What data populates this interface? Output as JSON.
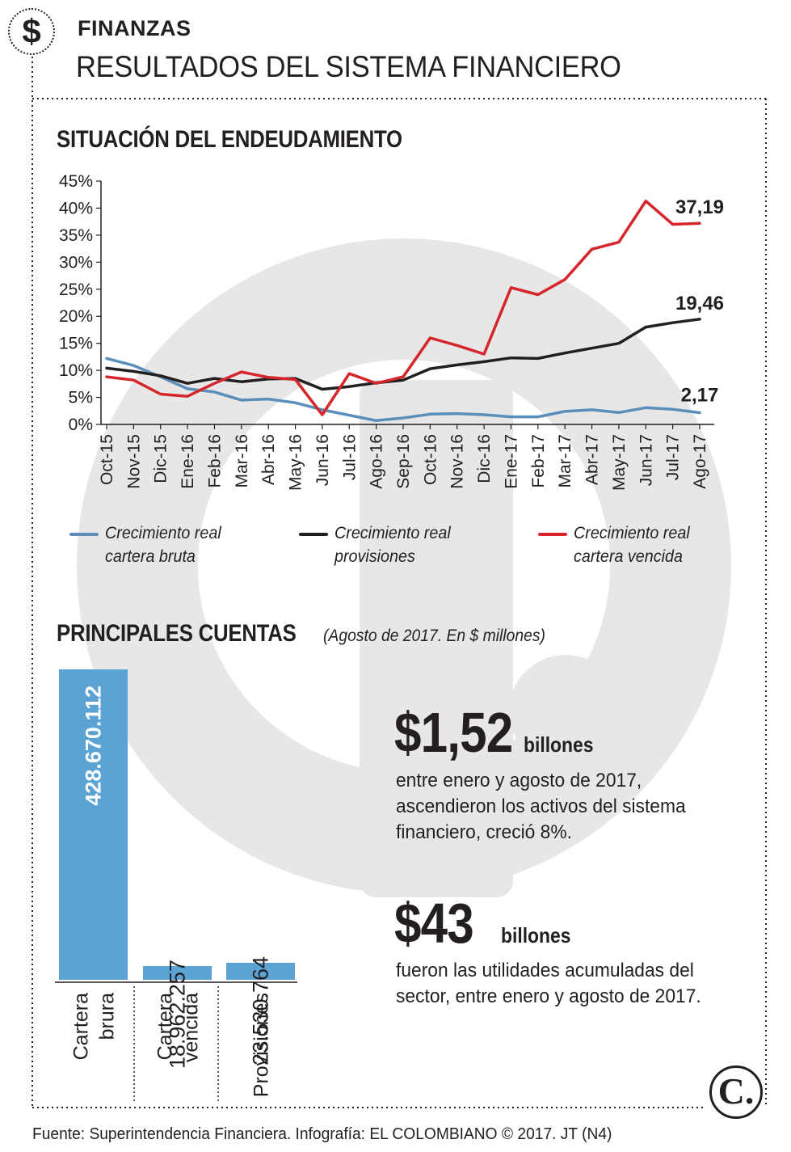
{
  "header": {
    "icon": "dollar-icon",
    "icon_glyph": "$",
    "section": "FINANZAS",
    "title": "RESULTADOS DEL SISTEMA FINANCIERO"
  },
  "line_section": {
    "title": "SITUACIÓN DEL ENDEUDAMIENTO"
  },
  "bar_section": {
    "title": "PRINCIPALES CUENTAS",
    "note": "(Agosto de 2017. En $ millones)"
  },
  "highlights": [
    {
      "value": "$1,52",
      "unit": "billones",
      "text": "entre enero y agosto de 2017, ascendieron los activos del sistema financiero, creció 8%."
    },
    {
      "value": "$43",
      "unit": "billones",
      "text": "fueron las utilidades acumuladas del sector, entre enero y agosto de 2017."
    }
  ],
  "legend": [
    {
      "label": "Crecimiento real cartera bruta",
      "color": "#5b8fb9"
    },
    {
      "label": "Crecimiento real provisiones",
      "color": "#231f20"
    },
    {
      "label": "Crecimiento real cartera vencida",
      "color": "#d6262b"
    }
  ],
  "footer": "Fuente: Superintendencia Financiera. Infografía: EL COLOMBIANO © 2017. JT (N4)",
  "logo": {
    "glyph": "C."
  },
  "chart_data": [
    {
      "type": "line",
      "title": "SITUACIÓN DEL ENDEUDAMIENTO",
      "categories": [
        "Oct-15",
        "Nov-15",
        "Dic-15",
        "Ene-16",
        "Feb-16",
        "Mar-16",
        "Abr-16",
        "May-16",
        "Jun-16",
        "Jul-16",
        "Ago-16",
        "Sep-16",
        "Oct-16",
        "Nov-16",
        "Dic-16",
        "Ene-17",
        "Feb-17",
        "Mar-17",
        "Abr-17",
        "May-17",
        "Jun-17",
        "Jul-17",
        "Ago-17"
      ],
      "yticks": [
        "0%",
        "5%",
        "10%",
        "15%",
        "20%",
        "25%",
        "30%",
        "35%",
        "40%",
        "45%"
      ],
      "ylim": [
        0,
        45
      ],
      "grid": false,
      "series": [
        {
          "name": "Crecimiento real cartera bruta",
          "color": "#5b8fb9",
          "values": [
            12.2,
            10.9,
            8.8,
            6.6,
            6.0,
            4.5,
            4.7,
            4.0,
            2.7,
            1.7,
            0.7,
            1.2,
            1.9,
            2.0,
            1.8,
            1.4,
            1.4,
            2.4,
            2.7,
            2.2,
            3.1,
            2.8,
            2.17
          ],
          "end_label": "2,17"
        },
        {
          "name": "Crecimiento real provisiones",
          "color": "#231f20",
          "values": [
            10.4,
            9.8,
            9.0,
            7.6,
            8.5,
            7.9,
            8.4,
            8.5,
            6.5,
            7.0,
            7.7,
            8.2,
            10.3,
            11.0,
            11.6,
            12.3,
            12.2,
            13.2,
            14.1,
            15.0,
            18.0,
            18.8,
            19.46
          ],
          "end_label": "19,46"
        },
        {
          "name": "Crecimiento real cartera vencida",
          "color": "#d6262b",
          "values": [
            8.8,
            8.2,
            5.6,
            5.2,
            7.6,
            9.7,
            8.7,
            8.3,
            1.8,
            9.4,
            7.6,
            8.8,
            16.0,
            14.6,
            13.0,
            25.3,
            24.0,
            26.8,
            32.4,
            33.7,
            41.3,
            37.0,
            37.19
          ],
          "end_label": "37,19"
        }
      ]
    },
    {
      "type": "bar",
      "title": "PRINCIPALES CUENTAS",
      "categories": [
        "Cartera\nbrura",
        "Cartera\nvencida",
        "Provisiones"
      ],
      "values": [
        428670112,
        18962257,
        23530764
      ],
      "value_labels": [
        "428.670.112",
        "18.962.257",
        "23.530.764"
      ],
      "color": "#5ba3d4"
    }
  ]
}
